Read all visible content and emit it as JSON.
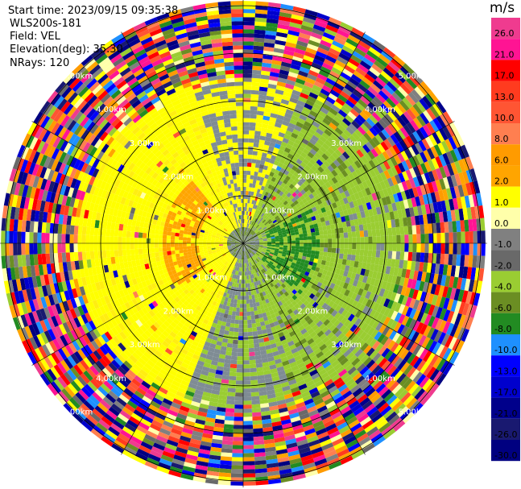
{
  "info": {
    "start_time": "Start time: 2023/09/15 09:35:38",
    "site": "WLS200s-181",
    "field": "Field: VEL",
    "elevation": "Elevation(deg): 35.30",
    "nrays": "NRays: 120"
  },
  "chart_data": {
    "type": "heatmap",
    "subtype": "PPI radar velocity field",
    "field": "VEL",
    "unit": "m/s",
    "nrays": 120,
    "range_rings_km": [
      1.0,
      2.0,
      3.0,
      4.0,
      5.0
    ],
    "ring_labels": [
      "1.00km",
      "2.00km",
      "3.00km",
      "4.00km",
      "5.00km"
    ],
    "max_range_km": 5.1,
    "colorbar": {
      "label": "m/s",
      "tick_labels": [
        "26.0",
        "21.0",
        "17.0",
        "13.0",
        "10.0",
        "8.0",
        "6.0",
        "2.0",
        "1.0",
        "0.0",
        "-1.0",
        "-2.0",
        "-4.0",
        "-6.0",
        "-8.0",
        "-10.0",
        "-13.0",
        "-17.0",
        "-21.0",
        "-26.0",
        "-30.0"
      ],
      "colors": [
        "#ef3b8f",
        "#ff1493",
        "#ff0000",
        "#ff3b1f",
        "#ff5533",
        "#ff7f50",
        "#ff9b00",
        "#ffa500",
        "#ffff00",
        "#ffffaa",
        "#808080",
        "#696969",
        "#9acd32",
        "#6b8e23",
        "#228b22",
        "#1e90ff",
        "#0000ff",
        "#0000cd",
        "#00008b",
        "#191970",
        "#000080"
      ]
    }
  }
}
